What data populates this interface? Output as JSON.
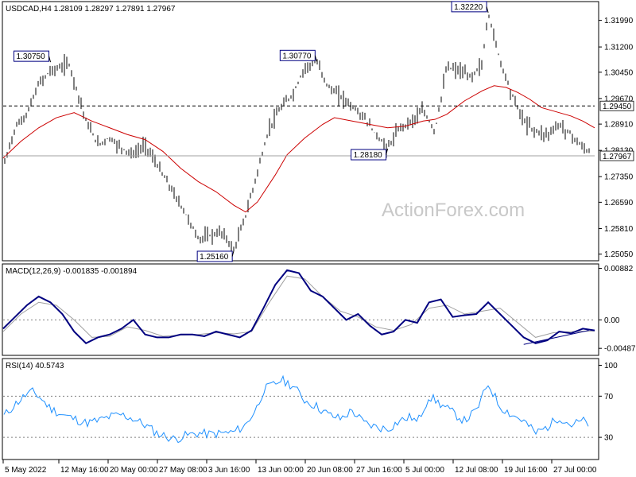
{
  "chart_data": [
    {
      "type": "line",
      "title": "USDCAD,H4  1.28109 1.28297 1.27891 1.27967",
      "watermark": "ActionForex.com",
      "ylim": [
        1.249,
        1.325
      ],
      "y_ticks": [
        "1.31990",
        "1.31200",
        "1.30450",
        "1.29670",
        "1.28910",
        "1.28130",
        "1.27350",
        "1.26590",
        "1.25810",
        "1.25050"
      ],
      "x_tick_labels": [
        "5 May 2022",
        "12 May 16:00",
        "20 May 00:00",
        "27 May 08:00",
        "3 Jun 16:00",
        "13 Jun 00:00",
        "20 Jun 08:00",
        "27 Jun 16:00",
        "5 Jul 00:00",
        "12 Jul 08:00",
        "19 Jul 16:00",
        "27 Jul 00:00"
      ],
      "x_index_range": [
        0,
        100
      ],
      "price_series": {
        "name": "USDCAD",
        "color": "#000000",
        "x": [
          0,
          2,
          4,
          6,
          8,
          10,
          11,
          12,
          14,
          16,
          18,
          20,
          22,
          24,
          26,
          27,
          29,
          31,
          33,
          35,
          37,
          39,
          41,
          43,
          45,
          47,
          49,
          51,
          53,
          55,
          58,
          61,
          63,
          65,
          67,
          69,
          71,
          73,
          75,
          77,
          79,
          81,
          82,
          84,
          86,
          88,
          90,
          92,
          94,
          96,
          98,
          100
        ],
        "y": [
          1.276,
          1.288,
          1.292,
          1.301,
          1.305,
          1.306,
          1.3075,
          1.302,
          1.29,
          1.283,
          1.285,
          1.282,
          1.28,
          1.283,
          1.277,
          1.274,
          1.268,
          1.262,
          1.255,
          1.256,
          1.257,
          1.2516,
          1.262,
          1.275,
          1.288,
          1.294,
          1.298,
          1.306,
          1.3077,
          1.3,
          1.296,
          1.291,
          1.286,
          1.2818,
          1.288,
          1.29,
          1.293,
          1.287,
          1.306,
          1.305,
          1.303,
          1.307,
          1.3222,
          1.308,
          1.298,
          1.29,
          1.287,
          1.286,
          1.289,
          1.286,
          1.282,
          1.2797
        ]
      },
      "ma_series": {
        "name": "MA",
        "color": "#cc0000",
        "x": [
          0,
          3,
          6,
          9,
          12,
          15,
          18,
          21,
          24,
          27,
          30,
          33,
          36,
          39,
          41,
          43,
          46,
          48,
          51,
          54,
          56,
          59,
          62,
          65,
          68,
          71,
          73,
          75,
          78,
          81,
          83,
          85,
          87,
          89,
          91,
          93,
          96,
          98,
          100
        ],
        "y": [
          1.279,
          1.284,
          1.288,
          1.291,
          1.2925,
          1.29,
          1.288,
          1.286,
          1.2845,
          1.281,
          1.276,
          1.272,
          1.269,
          1.265,
          1.263,
          1.266,
          1.274,
          1.28,
          1.285,
          1.289,
          1.291,
          1.29,
          1.289,
          1.288,
          1.2885,
          1.29,
          1.2905,
          1.292,
          1.296,
          1.299,
          1.3005,
          1.3,
          1.2985,
          1.2965,
          1.294,
          1.293,
          1.2915,
          1.29,
          1.288
        ]
      },
      "reference_line": {
        "value": 1.2945,
        "label": "1.29450",
        "style": "dashed",
        "color": "#000000"
      },
      "current_price": {
        "value": 1.27967,
        "label": "1.27967"
      },
      "annotations": [
        {
          "x": 8,
          "value": 1.3075,
          "label": "1.30750"
        },
        {
          "x": 39,
          "value": 1.2516,
          "label": "1.25160"
        },
        {
          "x": 53,
          "value": 1.3077,
          "label": "1.30770"
        },
        {
          "x": 65,
          "value": 1.2818,
          "label": "1.28180"
        },
        {
          "x": 82,
          "value": 1.3222,
          "label": "1.32220"
        }
      ],
      "grid": false
    },
    {
      "type": "line",
      "title": "MACD(12,26,9) -0.001835 -0.001894",
      "ylim": [
        -0.0058,
        0.0093
      ],
      "y_ticks": [
        "0.00882",
        "0.00",
        "-0.004872"
      ],
      "zero_line": {
        "value": 0,
        "style": "dotted"
      },
      "series": [
        {
          "name": "MACD",
          "color": "#000080",
          "x": [
            0,
            2,
            4,
            6,
            8,
            10,
            12,
            14,
            16,
            18,
            20,
            22,
            24,
            26,
            28,
            30,
            32,
            34,
            36,
            38,
            40,
            42,
            44,
            46,
            48,
            50,
            52,
            54,
            56,
            58,
            60,
            62,
            64,
            66,
            68,
            70,
            72,
            74,
            76,
            78,
            80,
            82,
            84,
            86,
            88,
            90,
            92,
            94,
            96,
            98,
            100
          ],
          "y": [
            -0.0015,
            0.0005,
            0.0025,
            0.004,
            0.003,
            0.001,
            -0.002,
            -0.004,
            -0.003,
            -0.0025,
            -0.0015,
            0.0,
            -0.0025,
            -0.003,
            -0.003,
            -0.0025,
            -0.0025,
            -0.0028,
            -0.002,
            -0.0025,
            -0.003,
            -0.0018,
            0.002,
            0.006,
            0.0085,
            0.008,
            0.005,
            0.004,
            0.002,
            0.0,
            0.001,
            -0.001,
            -0.0025,
            -0.002,
            0.0,
            -0.0005,
            0.003,
            0.0035,
            0.0005,
            0.0008,
            0.001,
            0.003,
            0.001,
            -0.001,
            -0.003,
            -0.004,
            -0.0035,
            -0.002,
            -0.0023,
            -0.0015,
            -0.0018
          ]
        },
        {
          "name": "Signal",
          "color": "#a0a0a0",
          "x": [
            0,
            3,
            6,
            9,
            12,
            15,
            18,
            21,
            24,
            27,
            30,
            33,
            36,
            39,
            42,
            45,
            48,
            51,
            54,
            57,
            60,
            63,
            66,
            69,
            72,
            75,
            78,
            81,
            84,
            87,
            90,
            93,
            96,
            100
          ],
          "y": [
            -0.002,
            0.001,
            0.003,
            0.0025,
            0.0,
            -0.003,
            -0.0028,
            -0.0012,
            -0.0018,
            -0.0028,
            -0.0026,
            -0.0025,
            -0.0022,
            -0.0024,
            -0.002,
            0.003,
            0.0075,
            0.007,
            0.004,
            0.0015,
            0.0005,
            -0.0012,
            -0.0018,
            -0.0008,
            0.002,
            0.0025,
            0.001,
            0.0015,
            0.002,
            -0.0005,
            -0.003,
            -0.0022,
            -0.002,
            -0.0019
          ]
        }
      ],
      "trendline": {
        "x": [
          88,
          99
        ],
        "y": [
          -0.0042,
          -0.0018
        ],
        "color": "#000080"
      },
      "grid": false
    },
    {
      "type": "line",
      "title": "RSI(14) 40.5743",
      "ylim": [
        10,
        105
      ],
      "y_ticks": [
        "100",
        "70",
        "30"
      ],
      "levels": [
        70,
        30
      ],
      "series": [
        {
          "name": "RSI",
          "color": "#1e90ff",
          "x": [
            0,
            2,
            4,
            5,
            6,
            8,
            10,
            12,
            14,
            16,
            18,
            20,
            22,
            24,
            26,
            28,
            29,
            31,
            33,
            35,
            37,
            39,
            41,
            43,
            44,
            46,
            47,
            49,
            51,
            53,
            55,
            57,
            59,
            61,
            63,
            65,
            67,
            69,
            70,
            72,
            74,
            76,
            78,
            80,
            82,
            84,
            86,
            88,
            90,
            92,
            94,
            96,
            98,
            100
          ],
          "y": [
            50,
            62,
            72,
            74,
            70,
            58,
            52,
            48,
            44,
            46,
            50,
            52,
            48,
            42,
            34,
            30,
            28,
            32,
            34,
            33,
            34,
            35,
            42,
            60,
            76,
            82,
            86,
            80,
            66,
            60,
            52,
            48,
            56,
            44,
            40,
            38,
            46,
            50,
            44,
            70,
            62,
            54,
            46,
            56,
            82,
            60,
            52,
            46,
            34,
            40,
            50,
            42,
            46,
            40
          ]
        }
      ],
      "grid": false
    }
  ]
}
